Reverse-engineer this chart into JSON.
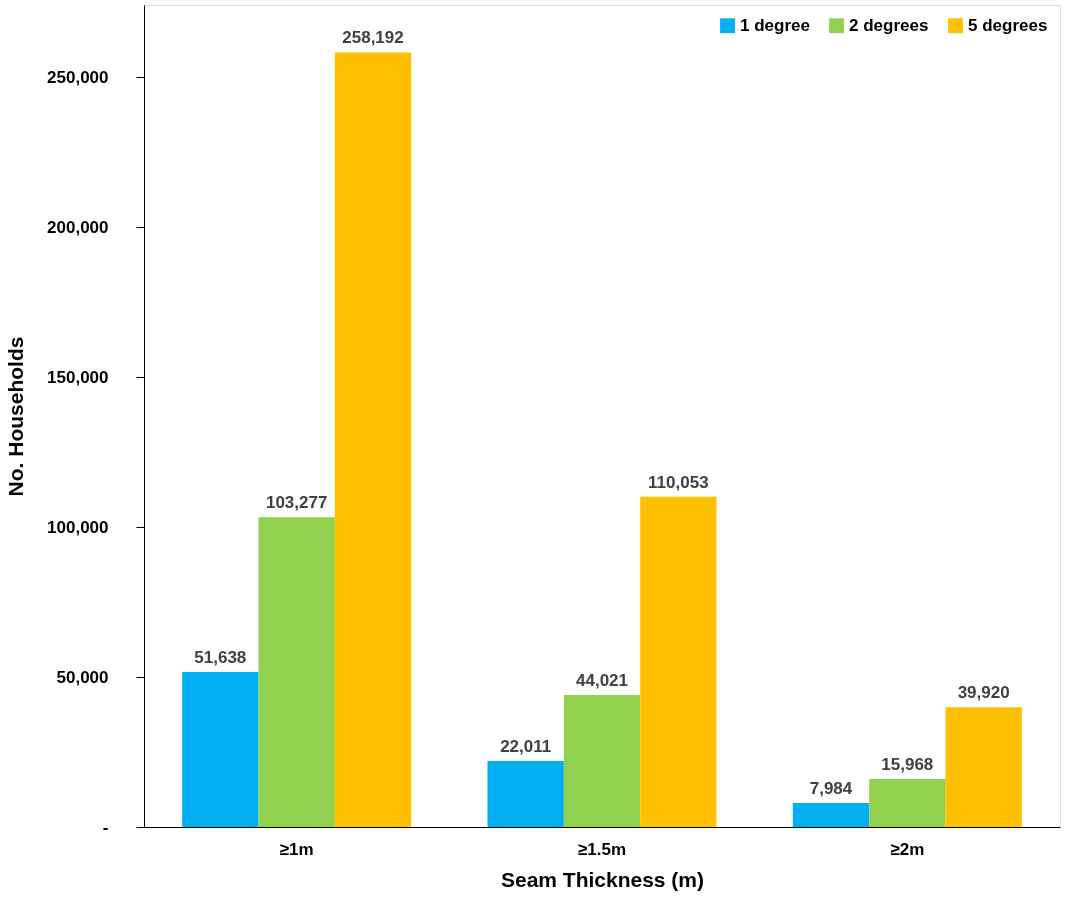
{
  "chart_data": {
    "type": "bar",
    "xlabel": "Seam Thickness (m)",
    "ylabel": "No. Households",
    "categories": [
      "≥1m",
      "≥1.5m",
      "≥2m"
    ],
    "series": [
      {
        "name": "1 degree",
        "color": "#00b0f0",
        "values": [
          51638,
          22011,
          7984
        ],
        "value_labels": [
          "51,638",
          "22,011",
          "7,984"
        ]
      },
      {
        "name": "2 degrees",
        "color": "#92d050",
        "values": [
          103277,
          44021,
          15968
        ],
        "value_labels": [
          "103,277",
          "44,021",
          "15,968"
        ]
      },
      {
        "name": "5 degrees",
        "color": "#ffc000",
        "values": [
          258192,
          110053,
          39920
        ],
        "value_labels": [
          "258,192",
          "110,053",
          "39,920"
        ]
      }
    ],
    "ylim": [
      0,
      274000
    ],
    "yticks": [
      {
        "value": 0,
        "label": "-"
      },
      {
        "value": 50000,
        "label": "50,000"
      },
      {
        "value": 100000,
        "label": "100,000"
      },
      {
        "value": 150000,
        "label": "150,000"
      },
      {
        "value": 200000,
        "label": "200,000"
      },
      {
        "value": 250000,
        "label": "250,000"
      }
    ],
    "grid": false,
    "legend": "top right"
  }
}
